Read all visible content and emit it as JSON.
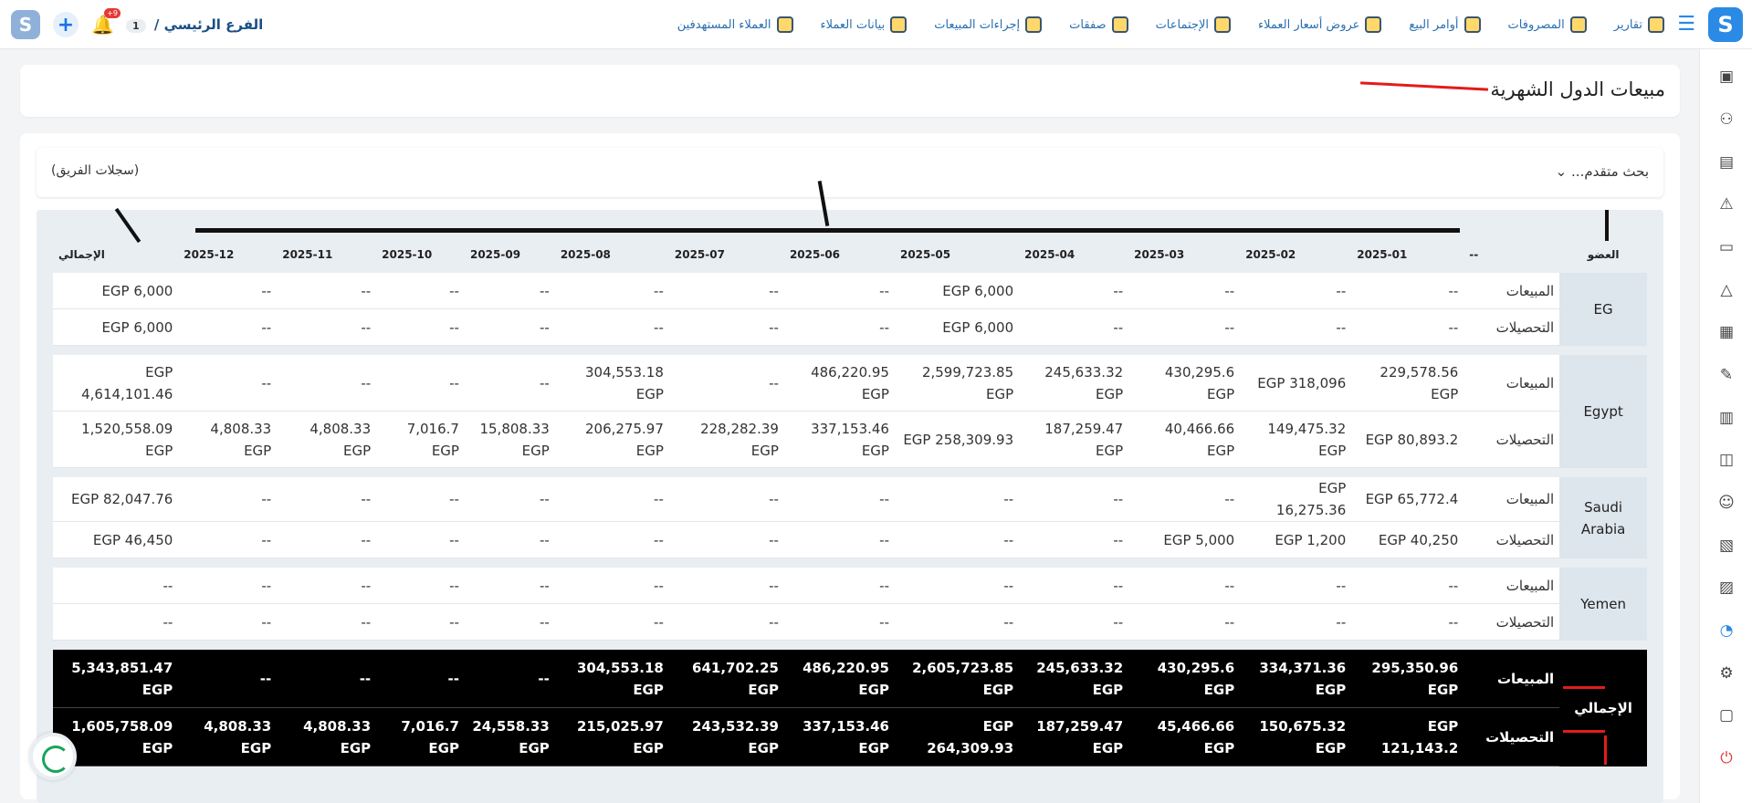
{
  "topbar": {
    "branch_label": "الفرع الرئيسي /",
    "branch_number": "1",
    "notification_count": "+9",
    "nav": [
      {
        "label": "العملاء المستهدفين",
        "icon": "target-customers-icon"
      },
      {
        "label": "بيانات العملاء",
        "icon": "customer-data-icon"
      },
      {
        "label": "إجراءات المبيعات",
        "icon": "sales-actions-icon"
      },
      {
        "label": "صفقات",
        "icon": "deals-icon"
      },
      {
        "label": "الإجتماعات",
        "icon": "meetings-icon"
      },
      {
        "label": "عروض أسعار العملاء",
        "icon": "quotes-icon"
      },
      {
        "label": "أوامر البيع",
        "icon": "sales-orders-icon"
      },
      {
        "label": "المصروفات",
        "icon": "expenses-icon"
      },
      {
        "label": "تقارير",
        "icon": "reports-icon"
      }
    ]
  },
  "page": {
    "title": "مبيعات الدول الشهرية",
    "advanced_search": "بحث متقدم...",
    "team_records": "(سجلات الفريق)"
  },
  "table": {
    "member_header": "العضو",
    "dash_header": "--",
    "months": [
      "2025-01",
      "2025-02",
      "2025-03",
      "2025-04",
      "2025-05",
      "2025-06",
      "2025-07",
      "2025-08",
      "2025-09",
      "2025-10",
      "2025-11",
      "2025-12"
    ],
    "total_header": "الإجمالي",
    "sales_label": "المبيعات",
    "collections_label": "التحصيلات",
    "groups": [
      {
        "name": "EG",
        "sales": [
          "--",
          "--",
          "--",
          "--",
          "EGP 6,000",
          "--",
          "--",
          "--",
          "--",
          "--",
          "--",
          "--",
          "EGP 6,000"
        ],
        "collections": [
          "--",
          "--",
          "--",
          "--",
          "EGP 6,000",
          "--",
          "--",
          "--",
          "--",
          "--",
          "--",
          "--",
          "EGP 6,000"
        ]
      },
      {
        "name": "Egypt",
        "sales": [
          "229,578.56 EGP",
          "EGP 318,096",
          "430,295.6 EGP",
          "245,633.32 EGP",
          "2,599,723.85 EGP",
          "486,220.95 EGP",
          "--",
          "304,553.18 EGP",
          "--",
          "--",
          "--",
          "--",
          "EGP 4,614,101.46"
        ],
        "collections": [
          "EGP 80,893.2",
          "149,475.32 EGP",
          "40,466.66 EGP",
          "187,259.47 EGP",
          "EGP 258,309.93",
          "337,153.46 EGP",
          "228,282.39 EGP",
          "206,275.97 EGP",
          "15,808.33 EGP",
          "7,016.7 EGP",
          "4,808.33 EGP",
          "4,808.33 EGP",
          "1,520,558.09 EGP"
        ]
      },
      {
        "name": "Saudi Arabia",
        "sales": [
          "EGP 65,772.4",
          "EGP 16,275.36",
          "--",
          "--",
          "--",
          "--",
          "--",
          "--",
          "--",
          "--",
          "--",
          "--",
          "EGP 82,047.76"
        ],
        "collections": [
          "EGP 40,250",
          "EGP 1,200",
          "EGP 5,000",
          "--",
          "--",
          "--",
          "--",
          "--",
          "--",
          "--",
          "--",
          "--",
          "EGP 46,450"
        ]
      },
      {
        "name": "Yemen",
        "sales": [
          "--",
          "--",
          "--",
          "--",
          "--",
          "--",
          "--",
          "--",
          "--",
          "--",
          "--",
          "--",
          "--"
        ],
        "collections": [
          "--",
          "--",
          "--",
          "--",
          "--",
          "--",
          "--",
          "--",
          "--",
          "--",
          "--",
          "--",
          "--"
        ]
      }
    ],
    "total_row": {
      "name": "الإجمالي",
      "sales": [
        "295,350.96 EGP",
        "334,371.36 EGP",
        "430,295.6 EGP",
        "245,633.32 EGP",
        "2,605,723.85 EGP",
        "486,220.95 EGP",
        "641,702.25 EGP",
        "304,553.18 EGP",
        "--",
        "--",
        "--",
        "--",
        "5,343,851.47 EGP"
      ],
      "collections": [
        "EGP 121,143.2",
        "150,675.32 EGP",
        "45,466.66 EGP",
        "187,259.47 EGP",
        "EGP 264,309.93",
        "337,153.46 EGP",
        "243,532.39 EGP",
        "215,025.97 EGP",
        "24,558.33 EGP",
        "7,016.7 EGP",
        "4,808.33 EGP",
        "4,808.33 EGP",
        "1,605,758.09 EGP"
      ]
    }
  },
  "colors": {
    "accent": "#2a8ae6",
    "annotation_red": "#e31b1b",
    "total_bg": "#000000"
  }
}
